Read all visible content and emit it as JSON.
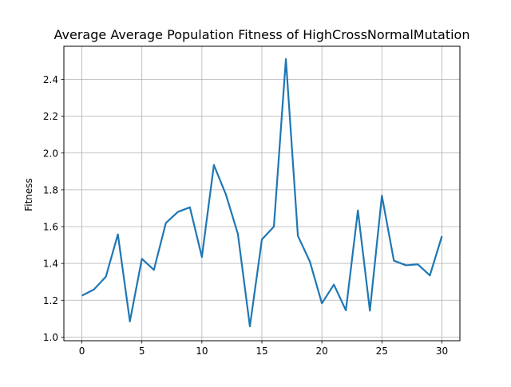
{
  "chart_data": {
    "type": "line",
    "title": "Average Average Population Fitness of HighCrossNormalMutation",
    "xlabel": "",
    "ylabel": "Fitness",
    "xlim": [
      -1.5,
      31.5
    ],
    "ylim": [
      0.98,
      2.58
    ],
    "xticks": [
      0,
      5,
      10,
      15,
      20,
      25,
      30
    ],
    "xtick_labels": [
      "0",
      "5",
      "10",
      "15",
      "20",
      "25",
      "30"
    ],
    "yticks": [
      1.0,
      1.2,
      1.4,
      1.6,
      1.8,
      2.0,
      2.2,
      2.4
    ],
    "ytick_labels": [
      "1.0",
      "1.2",
      "1.4",
      "1.6",
      "1.8",
      "2.0",
      "2.2",
      "2.4"
    ],
    "grid": true,
    "legend": "none",
    "line_color": "#1f77b4",
    "series": [
      {
        "x": [
          0,
          1,
          2,
          3,
          4,
          5,
          6,
          7,
          8,
          9,
          10,
          11,
          12,
          13,
          14,
          15,
          16,
          17,
          18,
          19,
          20,
          21,
          22,
          23,
          24,
          25,
          26,
          27,
          28,
          29,
          30
        ],
        "values": [
          1.225,
          1.258,
          1.328,
          1.558,
          1.085,
          1.425,
          1.365,
          1.62,
          1.68,
          1.705,
          1.435,
          1.935,
          1.775,
          1.56,
          1.058,
          1.53,
          1.6,
          2.51,
          1.55,
          1.41,
          1.183,
          1.285,
          1.145,
          1.688,
          1.143,
          1.768,
          1.415,
          1.39,
          1.395,
          1.335,
          1.548
        ]
      }
    ]
  }
}
